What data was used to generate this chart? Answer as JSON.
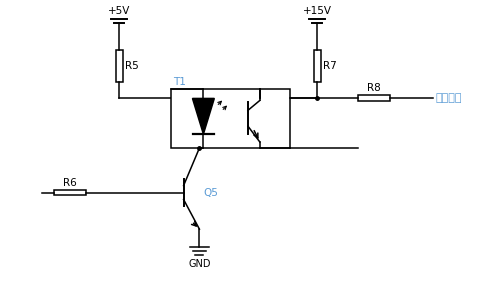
{
  "bg_color": "#ffffff",
  "line_color": "#000000",
  "label_color": "#5b9bd5",
  "figsize": [
    4.88,
    2.88
  ],
  "dpi": 100,
  "vcc5_label": "+5V",
  "vcc15_label": "+15V",
  "r5_label": "R5",
  "r6_label": "R6",
  "r7_label": "R7",
  "r8_label": "R8",
  "t1_label": "T1",
  "q5_label": "Q5",
  "gnd_label": "GND",
  "drive_label": "驱动信号"
}
